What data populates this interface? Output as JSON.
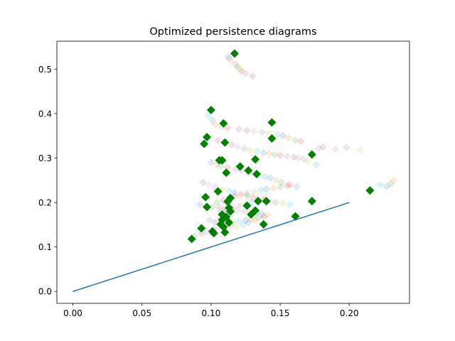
{
  "chart_data": {
    "type": "scatter",
    "title": "Optimized persistence diagrams",
    "xlabel": "",
    "ylabel": "",
    "xlim": [
      -0.0116,
      0.2436
    ],
    "ylim": [
      -0.0268,
      0.5628
    ],
    "xticks": [
      0.0,
      0.05,
      0.1,
      0.15,
      0.2
    ],
    "xtick_labels": [
      "0.00",
      "0.05",
      "0.10",
      "0.15",
      "0.20"
    ],
    "yticks": [
      0.0,
      0.1,
      0.2,
      0.3,
      0.4,
      0.5
    ],
    "ytick_labels": [
      "0.0",
      "0.1",
      "0.2",
      "0.3",
      "0.4",
      "0.5"
    ],
    "grid": false,
    "legend": "none",
    "series": [
      {
        "kind": "line",
        "color": "#1f77b4",
        "x": [
          0.0,
          0.2
        ],
        "y": [
          0.0,
          0.2
        ]
      },
      {
        "kind": "scatter",
        "marker": "diamond",
        "color": "#008000",
        "opacity": 1.0,
        "x": [
          0.117,
          0.1,
          0.109,
          0.144,
          0.144,
          0.097,
          0.11,
          0.095,
          0.173,
          0.106,
          0.108,
          0.111,
          0.121,
          0.127,
          0.133,
          0.132,
          0.215,
          0.096,
          0.105,
          0.173,
          0.134,
          0.14,
          0.097,
          0.114,
          0.112,
          0.126,
          0.113,
          0.132,
          0.108,
          0.114,
          0.129,
          0.161,
          0.111,
          0.108,
          0.113,
          0.107,
          0.138,
          0.093,
          0.109,
          0.101,
          0.102,
          0.11,
          0.086
        ],
        "y": [
          0.535,
          0.408,
          0.378,
          0.38,
          0.344,
          0.347,
          0.335,
          0.332,
          0.308,
          0.295,
          0.295,
          0.267,
          0.281,
          0.272,
          0.264,
          0.297,
          0.227,
          0.212,
          0.225,
          0.203,
          0.203,
          0.203,
          0.19,
          0.21,
          0.202,
          0.193,
          0.188,
          0.182,
          0.173,
          0.18,
          0.173,
          0.169,
          0.168,
          0.161,
          0.155,
          0.151,
          0.151,
          0.142,
          0.145,
          0.135,
          0.131,
          0.133,
          0.118
        ]
      },
      {
        "kind": "scatter",
        "marker": "diamond",
        "color": "multi",
        "opacity": 0.15,
        "colors": [
          "#1f77b4",
          "#ff7f0e",
          "#2ca02c",
          "#d62728",
          "#9467bd",
          "#8c564b",
          "#e377c2",
          "#7f7f7f",
          "#bcbd22",
          "#17becf"
        ],
        "x": [
          0.113,
          0.115,
          0.119,
          0.122,
          0.125,
          0.13,
          0.112,
          0.118,
          0.121,
          0.098,
          0.101,
          0.103,
          0.108,
          0.112,
          0.12,
          0.126,
          0.131,
          0.137,
          0.142,
          0.148,
          0.152,
          0.156,
          0.161,
          0.165,
          0.178,
          0.181,
          0.19,
          0.198,
          0.208,
          0.222,
          0.227,
          0.232,
          0.23,
          0.105,
          0.11,
          0.115,
          0.119,
          0.124,
          0.128,
          0.133,
          0.138,
          0.142,
          0.146,
          0.15,
          0.155,
          0.16,
          0.163,
          0.167,
          0.17,
          0.176,
          0.1,
          0.104,
          0.107,
          0.112,
          0.118,
          0.122,
          0.127,
          0.131,
          0.135,
          0.139,
          0.143,
          0.147,
          0.151,
          0.157,
          0.162,
          0.094,
          0.098,
          0.103,
          0.108,
          0.113,
          0.117,
          0.121,
          0.126,
          0.13,
          0.134,
          0.138,
          0.143,
          0.147,
          0.152,
          0.157,
          0.092,
          0.096,
          0.101,
          0.106,
          0.11,
          0.115,
          0.119,
          0.124,
          0.128,
          0.133,
          0.137,
          0.141,
          0.088,
          0.093,
          0.097,
          0.102,
          0.106,
          0.111,
          0.116,
          0.12,
          0.125,
          0.129,
          0.134,
          0.138,
          0.099,
          0.103,
          0.109,
          0.114,
          0.118,
          0.123,
          0.127,
          0.132,
          0.104,
          0.109,
          0.113,
          0.117,
          0.122,
          0.126,
          0.131,
          0.136,
          0.14,
          0.145,
          0.15,
          0.155,
          0.107,
          0.111,
          0.116,
          0.121,
          0.125,
          0.129,
          0.134,
          0.139
        ],
        "y": [
          0.525,
          0.518,
          0.505,
          0.495,
          0.49,
          0.484,
          0.528,
          0.51,
          0.5,
          0.395,
          0.385,
          0.375,
          0.372,
          0.368,
          0.365,
          0.362,
          0.36,
          0.358,
          0.356,
          0.352,
          0.35,
          0.345,
          0.34,
          0.338,
          0.322,
          0.325,
          0.32,
          0.324,
          0.318,
          0.24,
          0.236,
          0.25,
          0.242,
          0.34,
          0.335,
          0.33,
          0.326,
          0.322,
          0.318,
          0.315,
          0.312,
          0.31,
          0.308,
          0.306,
          0.304,
          0.302,
          0.3,
          0.298,
          0.292,
          0.285,
          0.29,
          0.286,
          0.282,
          0.278,
          0.275,
          0.272,
          0.268,
          0.265,
          0.262,
          0.258,
          0.255,
          0.25,
          0.245,
          0.24,
          0.236,
          0.245,
          0.24,
          0.235,
          0.23,
          0.226,
          0.222,
          0.218,
          0.215,
          0.212,
          0.208,
          0.205,
          0.202,
          0.2,
          0.198,
          0.195,
          0.195,
          0.192,
          0.19,
          0.188,
          0.186,
          0.184,
          0.182,
          0.18,
          0.178,
          0.176,
          0.174,
          0.172,
          0.125,
          0.13,
          0.135,
          0.14,
          0.145,
          0.15,
          0.155,
          0.158,
          0.16,
          0.163,
          0.166,
          0.168,
          0.16,
          0.155,
          0.15,
          0.148,
          0.145,
          0.15,
          0.155,
          0.16,
          0.2,
          0.205,
          0.21,
          0.215,
          0.218,
          0.22,
          0.225,
          0.228,
          0.23,
          0.232,
          0.235,
          0.238,
          0.178,
          0.183,
          0.188,
          0.192,
          0.196,
          0.2,
          0.204,
          0.208
        ]
      }
    ]
  }
}
